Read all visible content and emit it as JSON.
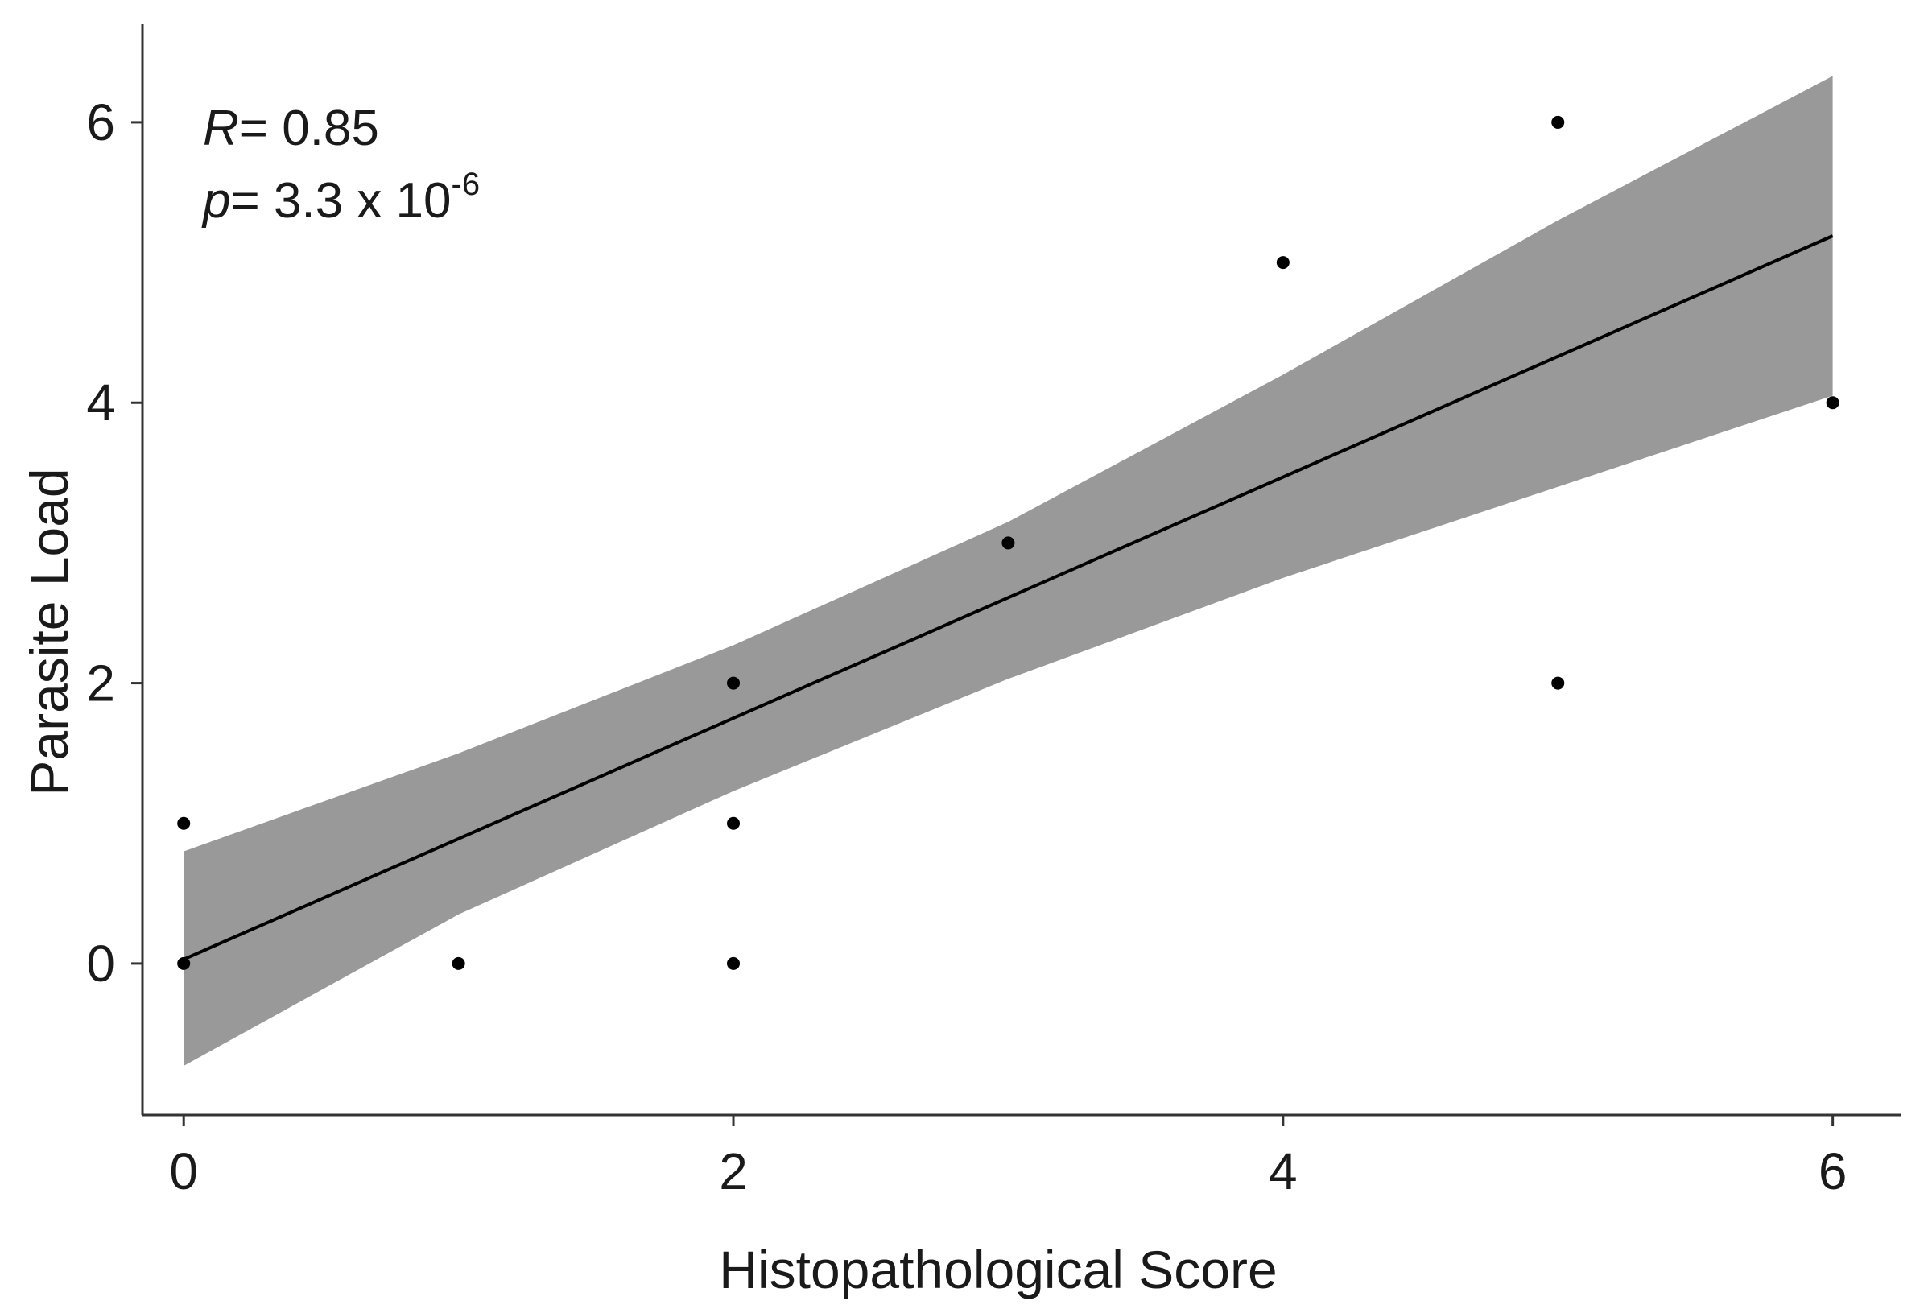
{
  "chart_data": {
    "type": "scatter",
    "title": "",
    "xlabel": "Histopathological Score",
    "ylabel": "Parasite Load",
    "xlim": [
      -0.15,
      6.25
    ],
    "ylim": [
      -1.08,
      6.7
    ],
    "x_ticks": [
      0,
      2,
      4,
      6
    ],
    "y_ticks": [
      0,
      2,
      4,
      6
    ],
    "grid": false,
    "legend": "none",
    "points": [
      {
        "x": 0,
        "y": 0
      },
      {
        "x": 0,
        "y": 1
      },
      {
        "x": 1,
        "y": 0
      },
      {
        "x": 2,
        "y": 0
      },
      {
        "x": 2,
        "y": 1
      },
      {
        "x": 2,
        "y": 2
      },
      {
        "x": 3,
        "y": 3
      },
      {
        "x": 4,
        "y": 5
      },
      {
        "x": 5,
        "y": 6
      },
      {
        "x": 5,
        "y": 2
      },
      {
        "x": 6,
        "y": 4
      }
    ],
    "regression": {
      "intercept": 0.03,
      "slope": 0.86,
      "confidence_band": {
        "x": [
          0,
          1,
          2,
          3,
          4,
          5,
          6
        ],
        "lower": [
          -0.73,
          0.35,
          1.23,
          2.03,
          2.75,
          3.4,
          4.05
        ],
        "upper": [
          0.8,
          1.5,
          2.27,
          3.15,
          4.2,
          5.3,
          6.33
        ]
      }
    },
    "annotations": {
      "r_label": "R",
      "r_value": "= 0.85",
      "p_label": "p",
      "p_value": "= 3.3 x 10",
      "p_exponent": "-6"
    },
    "colors": {
      "points": "#000000",
      "line": "#000000",
      "band": "#999999",
      "axis": "#333333"
    }
  }
}
